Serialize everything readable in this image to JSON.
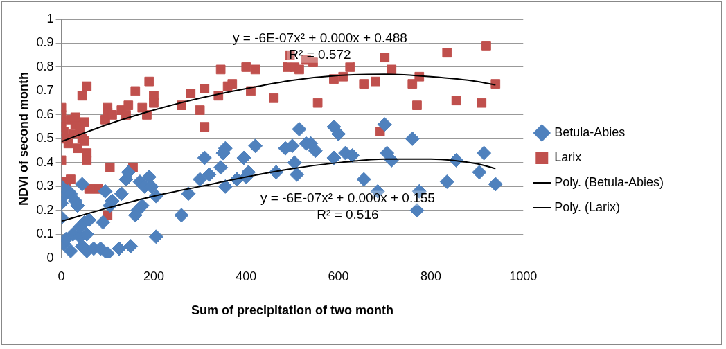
{
  "chart_data": {
    "type": "scatter",
    "xlabel": "Sum of precipitation of two month",
    "ylabel": "NDVI of second month",
    "xlim": [
      0,
      1000
    ],
    "xticks": [
      0,
      200,
      400,
      600,
      800,
      1000
    ],
    "ylim": [
      0,
      1
    ],
    "yticks": [
      0,
      0.1,
      0.2,
      0.3,
      0.4,
      0.5,
      0.6,
      0.7,
      0.8,
      0.9,
      1
    ],
    "grid": "y",
    "legend": "right",
    "annotations": [
      "y = -6E-07x² + 0.000x + 0.488",
      "R² = 0.572",
      "y = -6E-07x² + 0.000x + 0.155",
      "R² = 0.516"
    ],
    "series": [
      {
        "name": "Betula-Abies",
        "marker": "diamond",
        "color": "#4f81bd",
        "x": [
          0,
          0,
          0,
          0,
          0,
          0,
          5,
          10,
          15,
          20,
          20,
          25,
          30,
          35,
          40,
          40,
          45,
          45,
          50,
          55,
          55,
          60,
          70,
          85,
          90,
          95,
          100,
          105,
          110,
          125,
          130,
          140,
          145,
          150,
          160,
          165,
          170,
          175,
          180,
          190,
          195,
          205,
          205,
          260,
          275,
          300,
          310,
          320,
          345,
          350,
          355,
          355,
          380,
          395,
          400,
          405,
          420,
          465,
          485,
          500,
          505,
          510,
          515,
          530,
          540,
          550,
          590,
          590,
          600,
          615,
          630,
          655,
          685,
          700,
          705,
          715,
          760,
          770,
          775,
          835,
          855,
          905,
          915,
          940
        ],
        "values": [
          0.3,
          0.27,
          0.25,
          0.23,
          0.17,
          0.07,
          0.06,
          0.08,
          0.28,
          0.27,
          0.03,
          0.1,
          0.24,
          0.22,
          0.09,
          0.13,
          0.31,
          0.05,
          0.15,
          0.1,
          0.03,
          0.16,
          0.04,
          0.04,
          0.15,
          0.28,
          0.02,
          0.22,
          0.24,
          0.04,
          0.27,
          0.33,
          0.36,
          0.05,
          0.18,
          0.2,
          0.32,
          0.22,
          0.3,
          0.34,
          0.3,
          0.09,
          0.26,
          0.18,
          0.27,
          0.33,
          0.42,
          0.35,
          0.38,
          0.44,
          0.46,
          0.3,
          0.33,
          0.42,
          0.34,
          0.36,
          0.47,
          0.36,
          0.46,
          0.47,
          0.4,
          0.35,
          0.54,
          0.48,
          0.48,
          0.45,
          0.42,
          0.55,
          0.52,
          0.44,
          0.43,
          0.33,
          0.28,
          0.56,
          0.44,
          0.41,
          0.5,
          0.2,
          0.28,
          0.32,
          0.41,
          0.36,
          0.44,
          0.31
        ]
      },
      {
        "name": "Larix",
        "marker": "square",
        "color": "#c0504d",
        "x": [
          0,
          0,
          0,
          0,
          5,
          0,
          10,
          15,
          20,
          25,
          30,
          30,
          35,
          40,
          45,
          50,
          50,
          55,
          55,
          45,
          55,
          10,
          20,
          60,
          80,
          95,
          100,
          100,
          110,
          100,
          105,
          130,
          140,
          145,
          160,
          155,
          175,
          185,
          190,
          200,
          200,
          260,
          280,
          300,
          310,
          310,
          345,
          340,
          360,
          370,
          400,
          410,
          420,
          460,
          490,
          495,
          505,
          515,
          530,
          545,
          555,
          590,
          610,
          625,
          655,
          680,
          690,
          700,
          715,
          760,
          770,
          775,
          835,
          855,
          910,
          920,
          940
        ],
        "values": [
          0.63,
          0.6,
          0.57,
          0.55,
          0.53,
          0.41,
          0.5,
          0.48,
          0.58,
          0.52,
          0.56,
          0.59,
          0.46,
          0.54,
          0.5,
          0.57,
          0.49,
          0.44,
          0.41,
          0.68,
          0.72,
          0.32,
          0.33,
          0.29,
          0.29,
          0.58,
          0.63,
          0.61,
          0.6,
          0.18,
          0.38,
          0.62,
          0.6,
          0.64,
          0.7,
          0.38,
          0.63,
          0.6,
          0.74,
          0.68,
          0.65,
          0.64,
          0.69,
          0.62,
          0.55,
          0.71,
          0.79,
          0.68,
          0.72,
          0.73,
          0.8,
          0.7,
          0.79,
          0.67,
          0.8,
          0.85,
          0.8,
          0.79,
          0.83,
          0.82,
          0.65,
          0.75,
          0.76,
          0.8,
          0.73,
          0.74,
          0.53,
          0.84,
          0.79,
          0.73,
          0.64,
          0.76,
          0.86,
          0.66,
          0.65,
          0.89,
          0.73
        ]
      },
      {
        "name": "Poly. (Betula-Abies)",
        "type": "line",
        "marker": "none",
        "color": "#000000",
        "x": [
          0,
          100,
          200,
          300,
          400,
          500,
          600,
          700,
          800,
          900,
          940
        ],
        "values": [
          0.155,
          0.21,
          0.26,
          0.3,
          0.34,
          0.375,
          0.4,
          0.415,
          0.415,
          0.395,
          0.375
        ]
      },
      {
        "name": "Poly. (Larix)",
        "type": "line",
        "marker": "none",
        "color": "#000000",
        "x": [
          0,
          100,
          200,
          300,
          400,
          500,
          600,
          700,
          800,
          900,
          940
        ],
        "values": [
          0.488,
          0.56,
          0.62,
          0.67,
          0.71,
          0.745,
          0.765,
          0.77,
          0.76,
          0.74,
          0.725
        ]
      }
    ]
  }
}
